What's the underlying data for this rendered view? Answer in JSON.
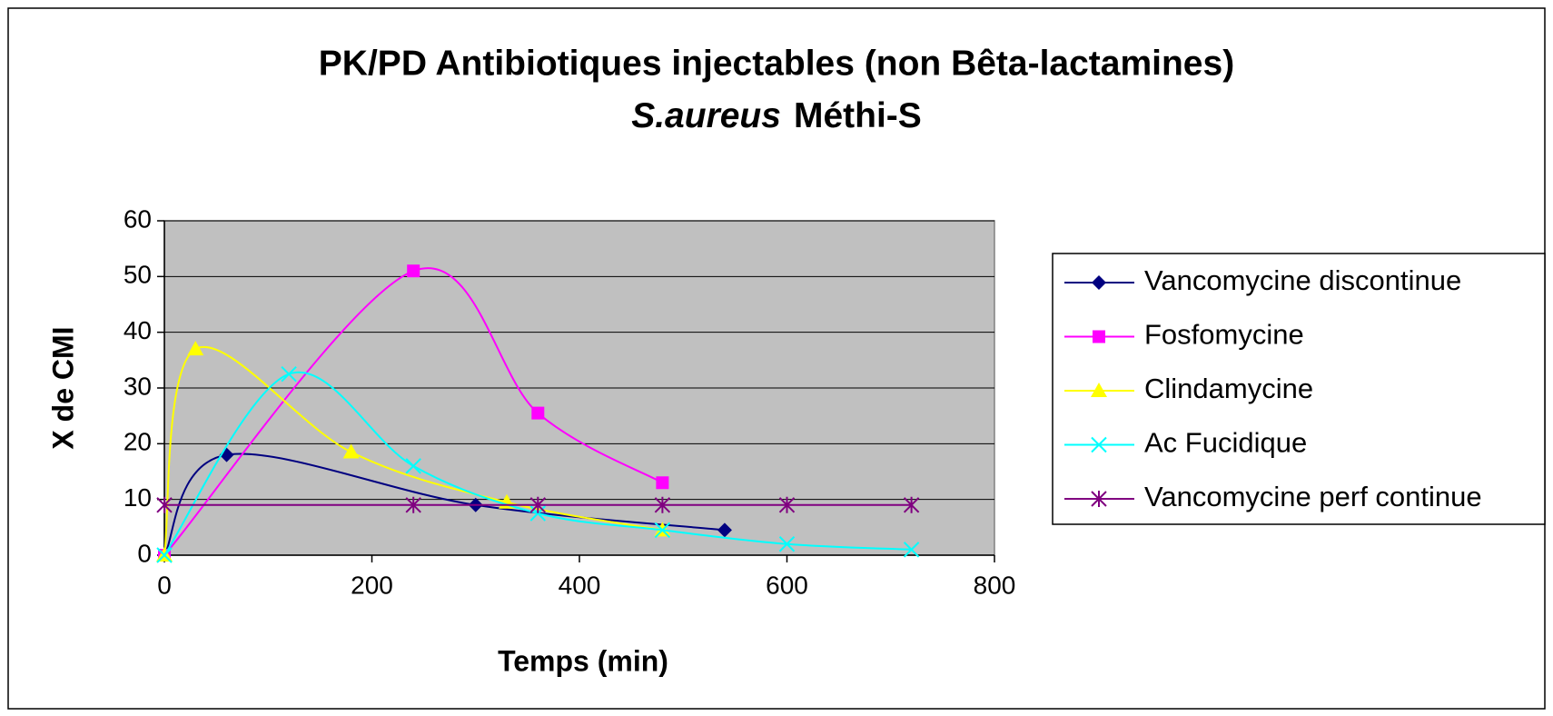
{
  "chart_data": {
    "type": "line",
    "title": "PK/PD Antibiotiques injectables (non Bêta-lactamines)",
    "subtitle_italic": "S.aureus",
    "subtitle": "Méthi-S",
    "x_label": "Temps (min)",
    "y_label": "X de CMI",
    "xlim": [
      0,
      800
    ],
    "xticks": [
      0,
      200,
      400,
      600,
      800
    ],
    "ylim": [
      0,
      60
    ],
    "yticks": [
      0,
      10,
      20,
      30,
      40,
      50,
      60
    ],
    "grid": true,
    "smooth": true,
    "legend": "right",
    "series": [
      {
        "name": "Vancomycine discontinue",
        "color": "#000080",
        "marker": "diamond",
        "x": [
          0,
          60,
          300,
          540
        ],
        "values": [
          0,
          18,
          9,
          4.5
        ]
      },
      {
        "name": "Fosfomycine",
        "color": "#ff00ff",
        "marker": "square",
        "x": [
          0,
          240,
          360,
          480
        ],
        "values": [
          0,
          51,
          25.5,
          13
        ]
      },
      {
        "name": "Clindamycine",
        "color": "#ffff00",
        "marker": "triangle",
        "x": [
          0,
          30,
          180,
          330,
          480
        ],
        "values": [
          0,
          37,
          18.5,
          9.5,
          4.5
        ]
      },
      {
        "name": "Ac Fucidique",
        "color": "#00ffff",
        "marker": "x",
        "x": [
          0,
          120,
          240,
          360,
          480,
          600,
          720
        ],
        "values": [
          0,
          32.5,
          16,
          7.5,
          4.5,
          2,
          1
        ]
      },
      {
        "name": "Vancomycine perf continue",
        "color": "#800080",
        "marker": "star",
        "x": [
          0,
          240,
          360,
          480,
          600,
          720
        ],
        "values": [
          9,
          9,
          9,
          9,
          9,
          9
        ]
      }
    ]
  }
}
